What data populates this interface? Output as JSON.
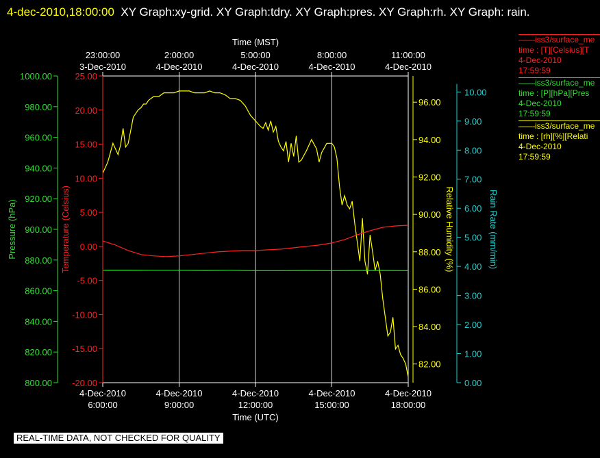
{
  "header": {
    "date_label": "4-dec-2010,18:00:00",
    "graphs_label": "XY Graph:xy-grid.  XY Graph:tdry.  XY Graph:pres.  XY Graph:rh.  XY Graph: rain."
  },
  "footer": {
    "notice": "REAL-TIME DATA, NOT CHECKED FOR QUALITY"
  },
  "legend": [
    {
      "line1": "iss3/surface_me",
      "line2": "time : [T][Celsius][T",
      "line3": "4-Dec-2010",
      "line4": "17:59:59",
      "color": "#ff2020"
    },
    {
      "line1": "iss3/surface_me",
      "line2": "time : [P][hPa][Pres",
      "line3": "4-Dec-2010",
      "line4": "17:59:59",
      "color": "#30e030"
    },
    {
      "line1": "iss3/surface_me",
      "line2": "time : [rh][%][Relati",
      "line3": "4-Dec-2010",
      "line4": "17:59:59",
      "color": "#ffff00"
    }
  ],
  "chart_data": {
    "type": "line",
    "x_bottom": {
      "label": "Time (UTC)",
      "ticks": [
        {
          "hour": 0,
          "date": "4-Dec-2010",
          "time": "6:00:00"
        },
        {
          "hour": 3,
          "date": "4-Dec-2010",
          "time": "9:00:00"
        },
        {
          "hour": 6,
          "date": "4-Dec-2010",
          "time": "12:00:00"
        },
        {
          "hour": 9,
          "date": "4-Dec-2010",
          "time": "15:00:00"
        },
        {
          "hour": 12,
          "date": "4-Dec-2010",
          "time": "18:00:00"
        }
      ]
    },
    "x_top": {
      "label": "Time (MST)",
      "ticks": [
        {
          "hour": 0,
          "time": "23:00:00",
          "date": "3-Dec-2010"
        },
        {
          "hour": 3,
          "time": "2:00:00",
          "date": "4-Dec-2010"
        },
        {
          "hour": 6,
          "time": "5:00:00",
          "date": "4-Dec-2010"
        },
        {
          "hour": 9,
          "time": "8:00:00",
          "date": "4-Dec-2010"
        },
        {
          "hour": 12,
          "time": "11:00:00",
          "date": "4-Dec-2010"
        }
      ]
    },
    "x_range_hours": [
      0,
      12
    ],
    "grid": "vertical lines at bottom-axis ticks",
    "axes": {
      "pressure": {
        "label": "Pressure (hPa)",
        "color": "#30e030",
        "range": [
          800,
          1000
        ],
        "ticks": [
          "800.00",
          "820.00",
          "840.00",
          "860.00",
          "880.00",
          "900.00",
          "920.00",
          "940.00",
          "960.00",
          "980.00",
          "1000.00"
        ]
      },
      "temperature": {
        "label": "Temperature (Celsius)",
        "color": "#ff2020",
        "range": [
          -20,
          25
        ],
        "ticks": [
          "-20.00",
          "-15.00",
          "-10.00",
          "-5.00",
          "0.00",
          "5.00",
          "10.00",
          "15.00",
          "20.00",
          "25.00"
        ]
      },
      "rh": {
        "label": "Relative Humidity (%)",
        "color": "#ffff00",
        "range": [
          81,
          97.4
        ],
        "ticks": [
          "82.00",
          "84.00",
          "86.00",
          "88.00",
          "90.00",
          "92.00",
          "94.00",
          "96.00"
        ]
      },
      "rain": {
        "label": "Rain Rate (mm/min)",
        "color": "#20d0d0",
        "range": [
          0,
          10.55
        ],
        "ticks": [
          "0.00",
          "1.00",
          "2.00",
          "3.00",
          "4.00",
          "5.00",
          "6.00",
          "7.00",
          "8.00",
          "9.00",
          "10.00"
        ]
      }
    },
    "series": [
      {
        "axis": "rh",
        "color": "#ffff00",
        "x": [
          0,
          0.2,
          0.4,
          0.5,
          0.6,
          0.7,
          0.8,
          0.9,
          1.0,
          1.1,
          1.2,
          1.3,
          1.4,
          1.5,
          1.6,
          1.7,
          1.8,
          2.0,
          2.2,
          2.4,
          2.6,
          2.8,
          3.0,
          3.2,
          3.4,
          3.6,
          3.8,
          4.0,
          4.2,
          4.4,
          4.6,
          4.8,
          5.0,
          5.2,
          5.4,
          5.6,
          5.8,
          6.0,
          6.2,
          6.3,
          6.4,
          6.5,
          6.6,
          6.7,
          6.8,
          6.9,
          7.0,
          7.1,
          7.2,
          7.3,
          7.4,
          7.5,
          7.6,
          7.7,
          7.8,
          8.0,
          8.2,
          8.4,
          8.5,
          8.6,
          8.8,
          9.0,
          9.1,
          9.2,
          9.3,
          9.4,
          9.5,
          9.6,
          9.7,
          9.8,
          9.9,
          10.0,
          10.1,
          10.2,
          10.3,
          10.4,
          10.5,
          10.6,
          10.7,
          10.8,
          10.9,
          11.0,
          11.1,
          11.2,
          11.3,
          11.4,
          11.5,
          11.6,
          11.7,
          11.8,
          11.9,
          12.0
        ],
        "y": [
          92.2,
          92.8,
          93.8,
          93.5,
          93.2,
          93.7,
          94.6,
          93.6,
          93.8,
          94.5,
          95.2,
          95.4,
          95.6,
          95.7,
          95.9,
          95.9,
          96.1,
          96.3,
          96.3,
          96.5,
          96.5,
          96.5,
          96.6,
          96.6,
          96.6,
          96.5,
          96.5,
          96.5,
          96.6,
          96.5,
          96.5,
          96.4,
          96.2,
          96.2,
          96.1,
          95.8,
          95.3,
          95.0,
          94.7,
          94.6,
          94.9,
          94.5,
          95.0,
          94.4,
          94.7,
          93.9,
          93.6,
          93.4,
          93.9,
          92.8,
          93.8,
          93.1,
          94.2,
          92.8,
          92.9,
          93.4,
          94.0,
          93.5,
          92.8,
          93.3,
          93.8,
          93.8,
          93.6,
          93.0,
          91.5,
          90.5,
          91.0,
          90.5,
          90.3,
          90.7,
          89.5,
          88.5,
          87.5,
          89.8,
          87.5,
          86.8,
          88.9,
          88.0,
          87.0,
          87.5,
          86.8,
          85.5,
          84.5,
          83.5,
          83.7,
          84.5,
          82.8,
          83.0,
          82.5,
          82.3,
          82.0,
          81.3
        ]
      },
      {
        "axis": "temperature",
        "color": "#ff2020",
        "x": [
          0,
          0.5,
          1.0,
          1.5,
          2.0,
          2.5,
          3.0,
          3.5,
          4.0,
          4.5,
          5.0,
          5.5,
          6.0,
          6.5,
          7.0,
          7.5,
          8.0,
          8.5,
          9.0,
          9.5,
          10.0,
          10.5,
          11.0,
          11.5,
          12.0
        ],
        "y": [
          0.8,
          0.2,
          -0.6,
          -1.2,
          -1.4,
          -1.5,
          -1.4,
          -1.2,
          -1.0,
          -0.8,
          -0.7,
          -0.6,
          -0.6,
          -0.5,
          -0.4,
          -0.2,
          0.0,
          0.2,
          0.5,
          1.0,
          1.7,
          2.3,
          2.8,
          3.0,
          3.1
        ]
      },
      {
        "axis": "pressure",
        "color": "#30e030",
        "x": [
          0,
          1,
          2,
          3,
          4,
          5,
          6,
          7,
          8,
          9,
          10,
          11,
          12
        ],
        "y": [
          873.4,
          873.4,
          873.3,
          873.3,
          873.2,
          873.3,
          873.1,
          873.1,
          873.2,
          873.1,
          873.2,
          873.2,
          873.1
        ]
      }
    ]
  }
}
